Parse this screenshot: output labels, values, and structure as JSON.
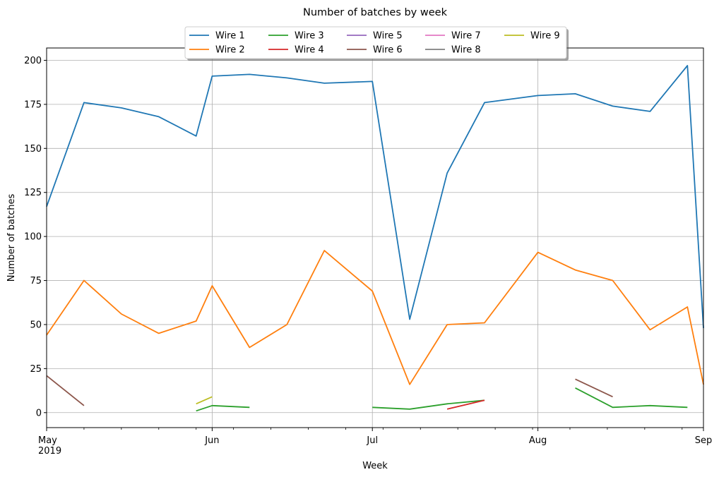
{
  "chart_data": {
    "type": "line",
    "title": "Number of batches by week",
    "xlabel": "Week",
    "ylabel": "Number of batches",
    "ylim": [
      -8.5,
      207
    ],
    "y_ticks": [
      0,
      25,
      50,
      75,
      100,
      125,
      150,
      175,
      200
    ],
    "x_range": [
      "2019-05-01",
      "2019-09-01"
    ],
    "x_ticks": [
      {
        "date": "2019-05-01",
        "label": "May",
        "sublabel": "2019"
      },
      {
        "date": "2019-06-01",
        "label": "Jun"
      },
      {
        "date": "2019-07-01",
        "label": "Jul"
      },
      {
        "date": "2019-08-01",
        "label": "Aug"
      },
      {
        "date": "2019-09-01",
        "label": "Sep"
      }
    ],
    "minor_ticks": [
      "2019-05-08",
      "2019-05-15",
      "2019-05-22",
      "2019-05-29",
      "2019-06-05",
      "2019-06-12",
      "2019-06-19",
      "2019-06-26",
      "2019-07-03",
      "2019-07-10",
      "2019-07-17",
      "2019-07-24",
      "2019-07-31",
      "2019-08-07",
      "2019-08-14",
      "2019-08-21",
      "2019-08-28"
    ],
    "grid": true,
    "legend_position": "top-center",
    "series": [
      {
        "name": "Wire 1",
        "color": "#1f77b4",
        "points": [
          [
            "2019-05-01",
            117
          ],
          [
            "2019-05-08",
            176
          ],
          [
            "2019-05-15",
            173
          ],
          [
            "2019-05-22",
            168
          ],
          [
            "2019-05-29",
            157
          ],
          [
            "2019-06-01",
            191
          ],
          [
            "2019-06-08",
            192
          ],
          [
            "2019-06-15",
            190
          ],
          [
            "2019-06-22",
            187
          ],
          [
            "2019-07-01",
            188
          ],
          [
            "2019-07-08",
            53
          ],
          [
            "2019-07-15",
            136
          ],
          [
            "2019-07-22",
            176
          ],
          [
            "2019-08-01",
            180
          ],
          [
            "2019-08-08",
            181
          ],
          [
            "2019-08-15",
            174
          ],
          [
            "2019-08-22",
            171
          ],
          [
            "2019-08-29",
            197
          ],
          [
            "2019-09-01",
            48
          ]
        ]
      },
      {
        "name": "Wire 2",
        "color": "#ff7f0e",
        "points": [
          [
            "2019-05-01",
            44
          ],
          [
            "2019-05-08",
            75
          ],
          [
            "2019-05-15",
            56
          ],
          [
            "2019-05-22",
            45
          ],
          [
            "2019-05-29",
            52
          ],
          [
            "2019-06-01",
            72
          ],
          [
            "2019-06-08",
            37
          ],
          [
            "2019-06-15",
            50
          ],
          [
            "2019-06-22",
            92
          ],
          [
            "2019-07-01",
            69
          ],
          [
            "2019-07-08",
            16
          ],
          [
            "2019-07-15",
            50
          ],
          [
            "2019-07-22",
            51
          ],
          [
            "2019-08-01",
            91
          ],
          [
            "2019-08-08",
            81
          ],
          [
            "2019-08-15",
            75
          ],
          [
            "2019-08-22",
            47
          ],
          [
            "2019-08-29",
            60
          ],
          [
            "2019-09-01",
            16
          ]
        ]
      },
      {
        "name": "Wire 3",
        "color": "#2ca02c",
        "segments": [
          [
            [
              "2019-05-29",
              1
            ],
            [
              "2019-06-01",
              4
            ],
            [
              "2019-06-08",
              3
            ]
          ],
          [
            [
              "2019-07-01",
              3
            ],
            [
              "2019-07-08",
              2
            ],
            [
              "2019-07-15",
              5
            ],
            [
              "2019-07-22",
              7
            ]
          ],
          [
            [
              "2019-08-08",
              14
            ],
            [
              "2019-08-15",
              3
            ],
            [
              "2019-08-22",
              4
            ],
            [
              "2019-08-29",
              3
            ]
          ]
        ]
      },
      {
        "name": "Wire 4",
        "color": "#d62728",
        "segments": [
          [
            [
              "2019-07-15",
              2
            ],
            [
              "2019-07-22",
              7
            ]
          ]
        ]
      },
      {
        "name": "Wire 5",
        "color": "#9467bd",
        "segments": []
      },
      {
        "name": "Wire 6",
        "color": "#8c564b",
        "segments": [
          [
            [
              "2019-05-01",
              21
            ],
            [
              "2019-05-08",
              4
            ]
          ],
          [
            [
              "2019-08-08",
              19
            ],
            [
              "2019-08-15",
              9
            ]
          ]
        ]
      },
      {
        "name": "Wire 7",
        "color": "#e377c2",
        "segments": []
      },
      {
        "name": "Wire 8",
        "color": "#7f7f7f",
        "segments": []
      },
      {
        "name": "Wire 9",
        "color": "#bcbd22",
        "segments": [
          [
            [
              "2019-05-29",
              5
            ],
            [
              "2019-06-01",
              9
            ]
          ]
        ]
      }
    ]
  }
}
